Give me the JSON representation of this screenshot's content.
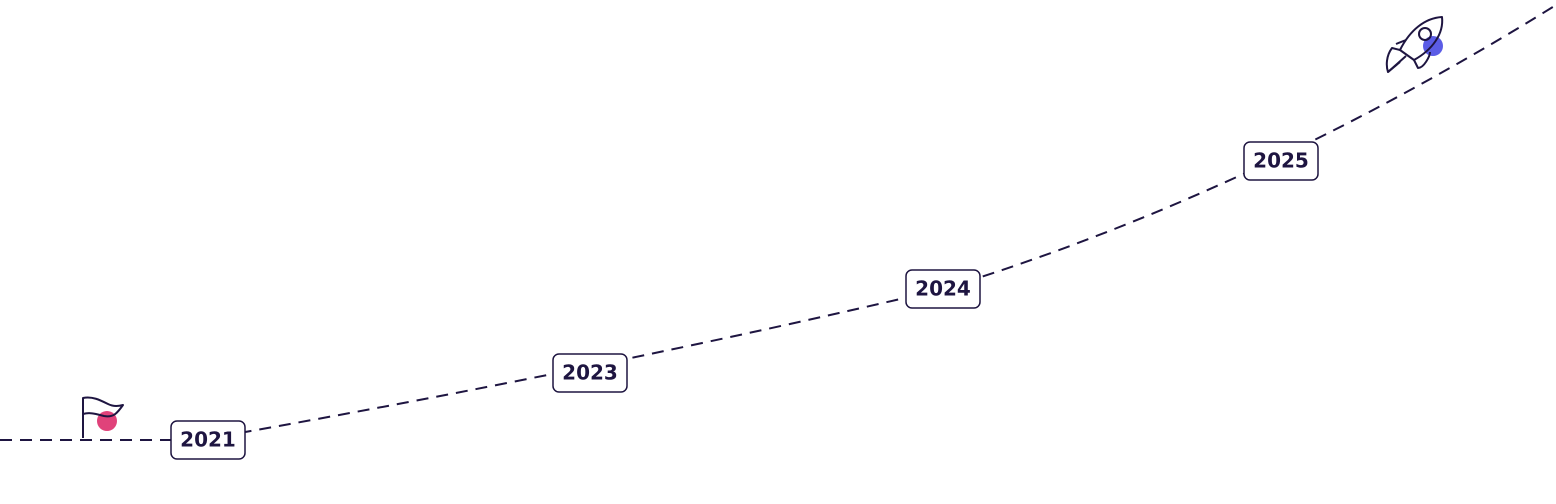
{
  "milestones": [
    {
      "label": "2021"
    },
    {
      "label": "2023"
    },
    {
      "label": "2024"
    },
    {
      "label": "2025"
    }
  ]
}
